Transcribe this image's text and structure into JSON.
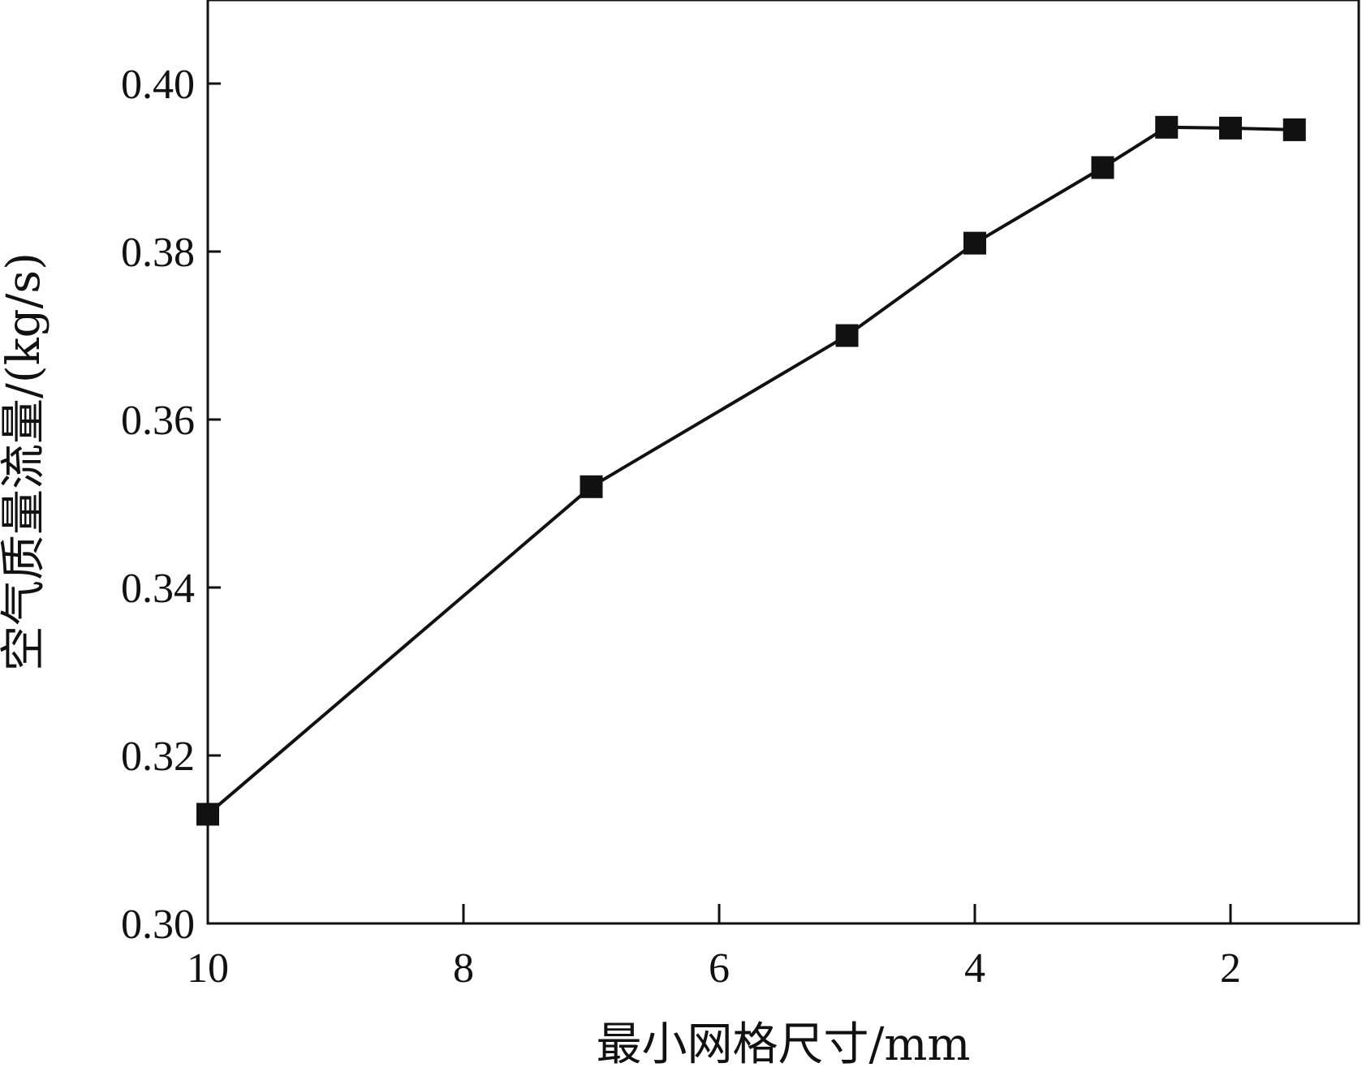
{
  "chart_data": {
    "type": "line",
    "title": "",
    "xlabel": "最小网格尺寸/mm",
    "ylabel": "空气质量流量/(kg/s)",
    "x_reversed": true,
    "xlim": [
      10,
      1
    ],
    "ylim": [
      0.3,
      0.41
    ],
    "x_ticks": [
      10,
      8,
      6,
      4,
      2
    ],
    "x_tick_labels": [
      "10",
      "8",
      "6",
      "4",
      "2"
    ],
    "y_ticks": [
      0.3,
      0.32,
      0.34,
      0.36,
      0.38,
      0.4
    ],
    "y_tick_labels": [
      "0.30",
      "0.32",
      "0.34",
      "0.36",
      "0.38",
      "0.40"
    ],
    "grid": false,
    "legend": "none",
    "marker": "square",
    "color": "#111111",
    "series": [
      {
        "x": [
          10,
          7,
          5,
          4,
          3,
          2.5,
          2,
          1.5
        ],
        "y": [
          0.313,
          0.352,
          0.37,
          0.381,
          0.39,
          0.3948,
          0.3947,
          0.3945
        ]
      }
    ]
  }
}
